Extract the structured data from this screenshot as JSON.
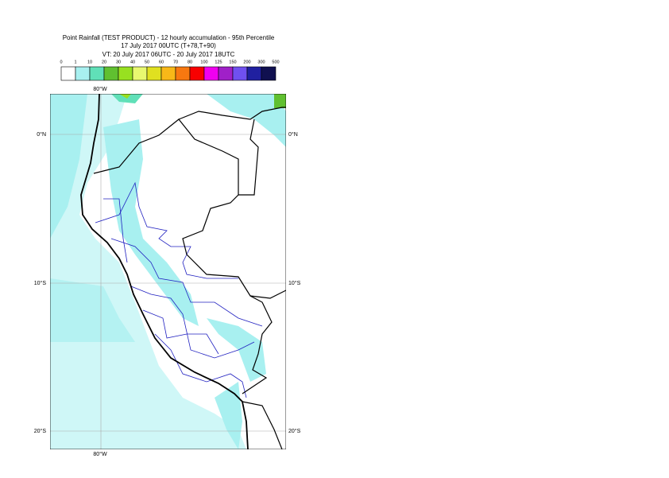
{
  "header": {
    "lines": [
      "Point Rainfall (TEST PRODUCT) - 12 hourly accumulation - 95th Percentile",
      "17 July 2017 00UTC (T+78,T+90)",
      "VT: 20 July 2017 06UTC - 20 July 2017 18UTC"
    ]
  },
  "legend": {
    "ticks": [
      0,
      1,
      10,
      20,
      30,
      40,
      50,
      60,
      70,
      80,
      100,
      125,
      150,
      200,
      300,
      500
    ],
    "colors": [
      "#ffffff",
      "#a8f0f0",
      "#60e0b8",
      "#60c030",
      "#98e020",
      "#e8f870",
      "#e0e020",
      "#f8b818",
      "#f87810",
      "#f80000",
      "#f000f0",
      "#a020c8",
      "#7050f0",
      "#2020a0",
      "#101050"
    ]
  },
  "map": {
    "top_labels": [
      "80°W"
    ],
    "bottom_labels": [
      "80°W"
    ],
    "left_labels": [
      "0°N",
      "10°S",
      "20°S"
    ],
    "right_labels": [
      "0°N",
      "10°S",
      "20°S"
    ]
  }
}
